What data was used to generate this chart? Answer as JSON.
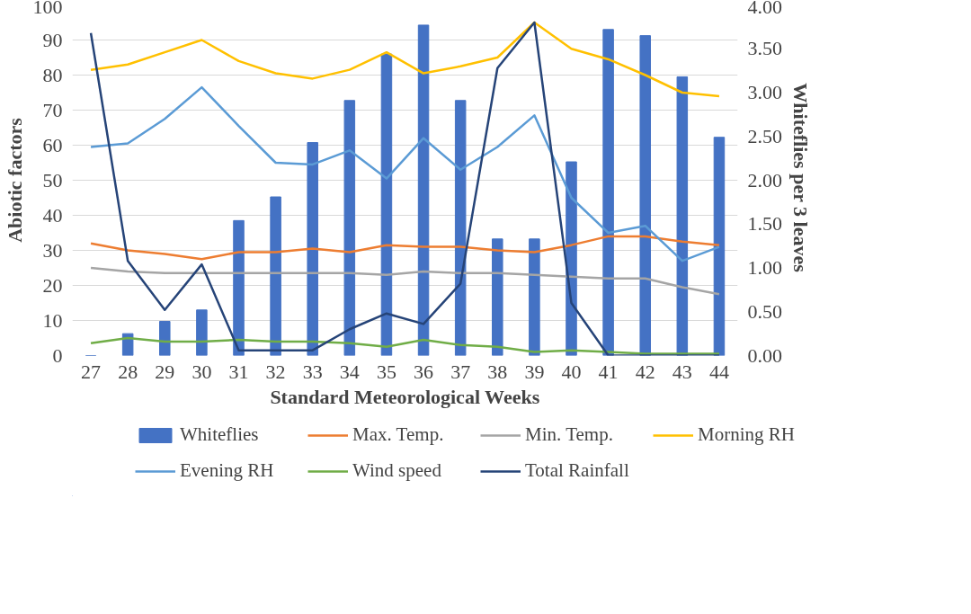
{
  "chart_data": {
    "type": "line",
    "xlabel": "Standard Meteorological Weeks",
    "ylabel": "Abiotic factors",
    "y2label": "Whiteflies  per 3 leaves",
    "categories": [
      "27",
      "28",
      "29",
      "30",
      "31",
      "32",
      "33",
      "34",
      "35",
      "36",
      "37",
      "38",
      "39",
      "40",
      "41",
      "42",
      "43",
      "44"
    ],
    "ylim": [
      0,
      100
    ],
    "yticks": [
      0,
      10,
      20,
      30,
      40,
      50,
      60,
      70,
      80,
      90,
      100
    ],
    "y2lim": [
      0,
      4
    ],
    "y2ticks": [
      {
        "value": 0,
        "label": "0.00"
      },
      {
        "value": 0.5,
        "label": "0.50"
      },
      {
        "value": 1,
        "label": "1.00"
      },
      {
        "value": 1.5,
        "label": "1.50"
      },
      {
        "value": 2,
        "label": "2.00"
      },
      {
        "value": 2.5,
        "label": "2.50"
      },
      {
        "value": 3,
        "label": "3.00"
      },
      {
        "value": 3.5,
        "label": "3.50"
      },
      {
        "value": 4,
        "label": "4.00"
      }
    ],
    "grid": "y",
    "legend": "bottom",
    "marker": "none",
    "line_style": "solid",
    "series": [
      {
        "name": "Whiteflies",
        "type": "bar",
        "axis": "y2",
        "color": "#4472c4",
        "values": [
          0,
          0.25,
          0.39,
          0.52,
          1.54,
          1.81,
          2.43,
          2.91,
          3.44,
          3.77,
          2.91,
          1.33,
          1.33,
          2.21,
          3.72,
          3.65,
          3.18,
          2.49
        ]
      },
      {
        "name": "Max. Temp.",
        "color": "#ed7d31",
        "values": [
          32,
          30,
          29,
          27.5,
          29.5,
          29.5,
          30.5,
          29.5,
          31.5,
          31,
          31,
          30,
          29.5,
          31.5,
          34,
          34,
          32.5,
          31.5
        ]
      },
      {
        "name": "Min. Temp.",
        "color": "#a5a5a5",
        "values": [
          25,
          24,
          23.5,
          23.5,
          23.5,
          23.5,
          23.5,
          23.5,
          23,
          24,
          23.5,
          23.5,
          23,
          22.5,
          22,
          22,
          19.5,
          17.5
        ]
      },
      {
        "name": "Morning RH",
        "color": "#ffc000",
        "values": [
          81.5,
          83,
          86.5,
          90,
          84,
          80.5,
          79,
          81.5,
          86.5,
          80.5,
          82.5,
          85,
          95,
          87.5,
          84.5,
          80,
          75,
          74
        ]
      },
      {
        "name": "Evening RH",
        "color": "#5b9bd5",
        "values": [
          59.5,
          60.5,
          67.5,
          76.5,
          65.5,
          55,
          54.5,
          58.5,
          50.5,
          62,
          53,
          59.5,
          68.5,
          45,
          35,
          37,
          27,
          31
        ]
      },
      {
        "name": "Wind speed",
        "color": "#70ad47",
        "values": [
          3.5,
          5,
          4,
          4,
          4.5,
          4,
          4,
          3.5,
          2.5,
          4.5,
          3,
          2.5,
          1,
          1.5,
          1,
          0.5,
          0.5,
          0.5
        ]
      },
      {
        "name": "Total Rainfall",
        "color": "#264478",
        "values": [
          92,
          27,
          13,
          26,
          1.5,
          1.5,
          1.5,
          7.5,
          12,
          9,
          20.5,
          82,
          95,
          15,
          0,
          0,
          0,
          0
        ]
      }
    ]
  }
}
